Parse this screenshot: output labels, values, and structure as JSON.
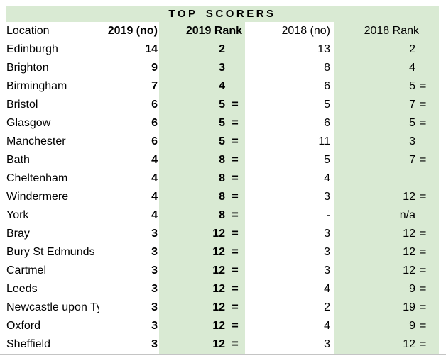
{
  "title": "TOP SCORERS",
  "colors": {
    "band_green": "#d9ead3",
    "text": "#000000",
    "bottom_border": "#c4c4c4",
    "background": "#ffffff"
  },
  "chart_data": {
    "type": "table",
    "title": "TOP SCORERS",
    "columns": [
      "Location",
      "2019 (no)",
      "2019 Rank",
      "2018 (no)",
      "2018 Rank"
    ],
    "rows": [
      {
        "location": "Edinburgh",
        "count_2019": "14",
        "rank_2019": "2",
        "tie_2019": "",
        "count_2018": "13",
        "rank_2018": "2",
        "tie_2018": ""
      },
      {
        "location": "Brighton",
        "count_2019": "9",
        "rank_2019": "3",
        "tie_2019": "",
        "count_2018": "8",
        "rank_2018": "4",
        "tie_2018": ""
      },
      {
        "location": "Birmingham",
        "count_2019": "7",
        "rank_2019": "4",
        "tie_2019": "",
        "count_2018": "6",
        "rank_2018": "5",
        "tie_2018": "="
      },
      {
        "location": "Bristol",
        "count_2019": "6",
        "rank_2019": "5",
        "tie_2019": "=",
        "count_2018": "5",
        "rank_2018": "7",
        "tie_2018": "="
      },
      {
        "location": "Glasgow",
        "count_2019": "6",
        "rank_2019": "5",
        "tie_2019": "=",
        "count_2018": "6",
        "rank_2018": "5",
        "tie_2018": "="
      },
      {
        "location": "Manchester",
        "count_2019": "6",
        "rank_2019": "5",
        "tie_2019": "=",
        "count_2018": "11",
        "rank_2018": "3",
        "tie_2018": ""
      },
      {
        "location": "Bath",
        "count_2019": "4",
        "rank_2019": "8",
        "tie_2019": "=",
        "count_2018": "5",
        "rank_2018": "7",
        "tie_2018": "="
      },
      {
        "location": "Cheltenham",
        "count_2019": "4",
        "rank_2019": "8",
        "tie_2019": "=",
        "count_2018": "4",
        "rank_2018": "",
        "tie_2018": ""
      },
      {
        "location": "Windermere",
        "count_2019": "4",
        "rank_2019": "8",
        "tie_2019": "=",
        "count_2018": "3",
        "rank_2018": "12",
        "tie_2018": "="
      },
      {
        "location": "York",
        "count_2019": "4",
        "rank_2019": "8",
        "tie_2019": "=",
        "count_2018": "-",
        "rank_2018": "n/a",
        "tie_2018": ""
      },
      {
        "location": "Bray",
        "count_2019": "3",
        "rank_2019": "12",
        "tie_2019": "=",
        "count_2018": "3",
        "rank_2018": "12",
        "tie_2018": "="
      },
      {
        "location": "Bury St Edmunds",
        "count_2019": "3",
        "rank_2019": "12",
        "tie_2019": "=",
        "count_2018": "3",
        "rank_2018": "12",
        "tie_2018": "="
      },
      {
        "location": "Cartmel",
        "count_2019": "3",
        "rank_2019": "12",
        "tie_2019": "=",
        "count_2018": "3",
        "rank_2018": "12",
        "tie_2018": "="
      },
      {
        "location": "Leeds",
        "count_2019": "3",
        "rank_2019": "12",
        "tie_2019": "=",
        "count_2018": "4",
        "rank_2018": "9",
        "tie_2018": "="
      },
      {
        "location": "Newcastle upon Tyne",
        "count_2019": "3",
        "rank_2019": "12",
        "tie_2019": "=",
        "count_2018": "2",
        "rank_2018": "19",
        "tie_2018": "="
      },
      {
        "location": "Oxford",
        "count_2019": "3",
        "rank_2019": "12",
        "tie_2019": "=",
        "count_2018": "4",
        "rank_2018": "9",
        "tie_2018": "="
      },
      {
        "location": "Sheffield",
        "count_2019": "3",
        "rank_2019": "12",
        "tie_2019": "=",
        "count_2018": "3",
        "rank_2018": "12",
        "tie_2018": "="
      }
    ]
  }
}
